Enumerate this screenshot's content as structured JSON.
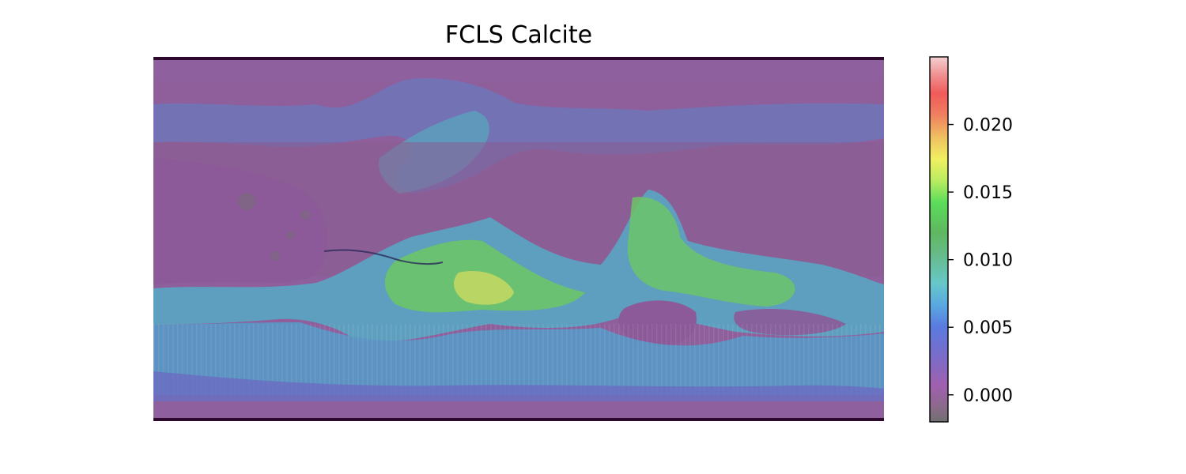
{
  "chart_data": {
    "type": "heatmap",
    "title": "FCLS Calcite",
    "xlabel": "",
    "ylabel": "",
    "colorbar": {
      "min": -0.002,
      "max": 0.025,
      "ticks": [
        0.0,
        0.005,
        0.01,
        0.015,
        0.02
      ],
      "tick_labels": [
        "0.000",
        "0.005",
        "0.010",
        "0.015",
        "0.020"
      ],
      "colormap": "gist_ncar-like (grey, purple, blue, cyan, green, yellow, orange, red, pink)"
    },
    "regions": [
      {
        "region": "north polar band",
        "value": 0.0
      },
      {
        "region": "northern mid-latitude streaks",
        "value": 0.004
      },
      {
        "region": "northern lowlands",
        "value": -0.001
      },
      {
        "region": "equatorial western highlands",
        "value": -0.001
      },
      {
        "region": "southern equatorial band west",
        "value": 0.01
      },
      {
        "region": "southern equatorial band center",
        "value": 0.015
      },
      {
        "region": "southern equatorial band east",
        "value": 0.012
      },
      {
        "region": "southern highlands",
        "value": 0.006
      },
      {
        "region": "south polar band",
        "value": 0.002
      }
    ]
  },
  "colors": {
    "background": "#ffffff",
    "map_border": "#2d0a2d"
  }
}
